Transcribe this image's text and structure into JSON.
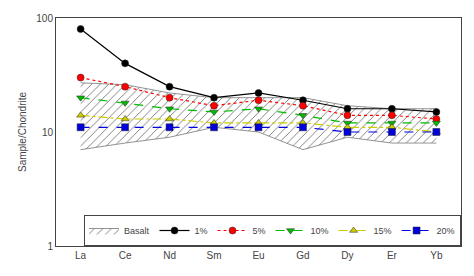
{
  "chart_data": {
    "type": "line",
    "categories": [
      "La",
      "Ce",
      "Nd",
      "Sm",
      "Eu",
      "Gd",
      "Dy",
      "Er",
      "Yb"
    ],
    "ylabel": "Sample/Chondrite",
    "log": "y",
    "ylim": [
      1,
      100
    ],
    "yticks": [
      1,
      10,
      100
    ],
    "grid": false,
    "legend": "lower right",
    "series": [
      {
        "name": "Basalt",
        "type": "band",
        "color": "#777777",
        "lower": [
          7,
          8,
          9,
          11,
          10,
          7,
          9,
          8,
          8
        ],
        "upper": [
          27,
          26,
          22,
          20,
          20,
          20,
          17,
          16,
          16
        ]
      },
      {
        "name": "1%",
        "color": "#000000",
        "marker": "circle",
        "line_style": "solid",
        "values": [
          80,
          40,
          25,
          20,
          22,
          19,
          16,
          16,
          15
        ]
      },
      {
        "name": "5%",
        "color": "#ff0000",
        "marker": "circle",
        "line_style": "dot",
        "values": [
          30,
          25,
          20,
          17,
          19,
          17,
          14,
          14,
          13
        ]
      },
      {
        "name": "10%",
        "color": "#00bb00",
        "marker": "triangle-down",
        "line_style": "dash",
        "values": [
          20,
          18,
          16,
          15,
          16,
          14,
          12,
          12,
          12
        ]
      },
      {
        "name": "15%",
        "color": "#cccc00",
        "marker": "triangle-up",
        "line_style": "dashdot",
        "values": [
          14,
          13,
          13,
          12,
          12,
          12,
          11,
          11,
          10
        ]
      },
      {
        "name": "20%",
        "color": "#0000dd",
        "marker": "square",
        "line_style": "dash",
        "values": [
          11,
          11,
          11,
          11,
          11,
          11,
          10,
          10,
          10
        ]
      }
    ]
  }
}
